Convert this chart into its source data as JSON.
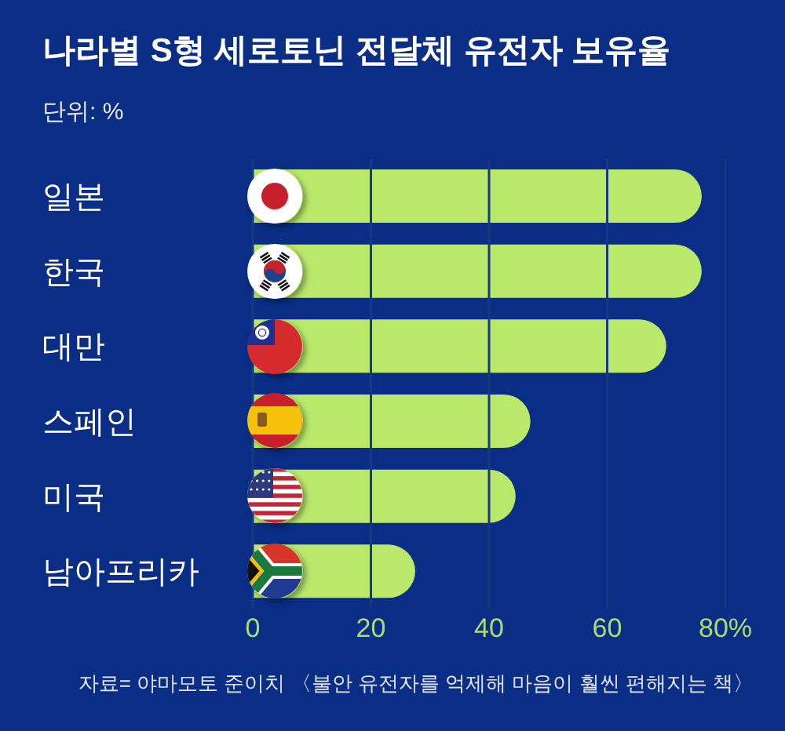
{
  "chart_data": {
    "type": "bar",
    "orientation": "horizontal",
    "title": "나라별 S형 세로토닌 전달체 유전자 보유율",
    "subtitle": "단위: %",
    "categories": [
      "일본",
      "한국",
      "대만",
      "스페인",
      "미국",
      "남아프리카"
    ],
    "series": [
      {
        "color": "#b9e86b",
        "values": [
          76,
          76,
          70,
          47,
          44.5,
          27.5
        ]
      }
    ],
    "xlim": [
      0,
      80
    ],
    "xticks": [
      0,
      20,
      40,
      60,
      {
        "value": 80,
        "label": "80%"
      }
    ],
    "grid": "x",
    "annotations": [
      "자료= 야마모토 준이치 〈불안 유전자를 억제해 마음이 훨씬 편해지는 책〉"
    ]
  }
}
